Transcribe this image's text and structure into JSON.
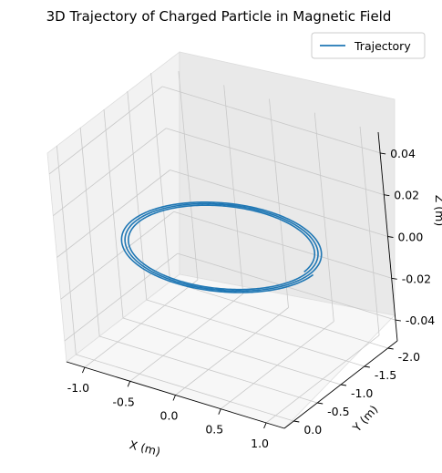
{
  "chart_data": {
    "type": "line",
    "title": "3D Trajectory of Charged Particle in Magnetic Field",
    "xlabel": "X (m)",
    "ylabel": "Y (m)",
    "zlabel": "Z (m)",
    "xlim": [
      -1.2,
      1.2
    ],
    "ylim": [
      -2.2,
      0.2
    ],
    "zlim": [
      -0.05,
      0.05
    ],
    "x_ticks": [
      "-1.0",
      "-0.5",
      "0.0",
      "0.5",
      "1.0"
    ],
    "y_ticks": [
      "0.0",
      "-0.5",
      "-1.0",
      "-1.5",
      "-2.0"
    ],
    "z_ticks": [
      "0.04",
      "0.02",
      "0.00",
      "-0.02",
      "-0.04"
    ],
    "grid": true,
    "legend": {
      "position": "top-right",
      "entries": [
        "Trajectory"
      ]
    },
    "series": [
      {
        "name": "Trajectory",
        "color": "#1f77b4",
        "center": {
          "x": 0.0,
          "y": -1.0
        },
        "radius_start": 1.0,
        "radius_end": 0.9,
        "turns": 3,
        "z": 0.0
      }
    ]
  }
}
